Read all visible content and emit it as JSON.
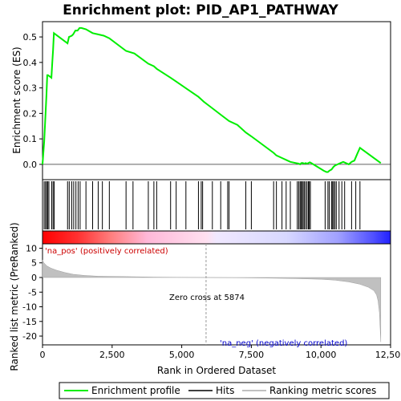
{
  "chart_data": {
    "type": "line",
    "title": "Enrichment plot: PID_AP1_PATHWAY",
    "top_panel": {
      "ylabel": "Enrichment score (ES)",
      "ylim": [
        -0.06,
        0.56
      ],
      "yticks": [
        "0.0",
        "0.1",
        "0.2",
        "0.3",
        "0.4",
        "0.5"
      ],
      "ytick_values": [
        0.0,
        0.1,
        0.2,
        0.3,
        0.4,
        0.5
      ],
      "series": [
        {
          "name": "Enrichment profile",
          "color": "#00ee00",
          "x": [
            0,
            60,
            100,
            140,
            170,
            200,
            320,
            350,
            380,
            410,
            900,
            950,
            1050,
            1100,
            1180,
            1260,
            1330,
            1400,
            1560,
            1800,
            2000,
            2200,
            2400,
            3000,
            3300,
            3800,
            4000,
            4100,
            4600,
            4800,
            5200,
            5600,
            5700,
            5800,
            6100,
            6400,
            6700,
            7000,
            7300,
            7500,
            8300,
            8400,
            8600,
            8800,
            8900,
            9100,
            9200,
            9250,
            9300,
            9350,
            9400,
            9450,
            9500,
            9550,
            9600,
            9650,
            10100,
            10200,
            10250,
            10300,
            10380,
            10450,
            10500,
            10600,
            10700,
            10800,
            11000,
            11100,
            11200,
            11300,
            11400,
            12150
          ],
          "y": [
            0.0,
            0.09,
            0.18,
            0.27,
            0.35,
            0.35,
            0.34,
            0.4,
            0.45,
            0.515,
            0.475,
            0.5,
            0.505,
            0.51,
            0.525,
            0.525,
            0.535,
            0.535,
            0.53,
            0.515,
            0.51,
            0.505,
            0.495,
            0.445,
            0.435,
            0.395,
            0.385,
            0.375,
            0.34,
            0.325,
            0.295,
            0.265,
            0.255,
            0.245,
            0.22,
            0.195,
            0.17,
            0.155,
            0.125,
            0.11,
            0.045,
            0.035,
            0.025,
            0.015,
            0.01,
            0.005,
            0.003,
            0.0,
            0.005,
            0.005,
            0.003,
            0.005,
            0.003,
            0.005,
            0.008,
            0.005,
            -0.025,
            -0.03,
            -0.03,
            -0.025,
            -0.02,
            -0.01,
            -0.005,
            0.0,
            0.005,
            0.01,
            0.0,
            0.01,
            0.015,
            0.04,
            0.065,
            0.005
          ]
        }
      ]
    },
    "hits": {
      "name": "Hits",
      "x": [
        60,
        110,
        150,
        190,
        230,
        330,
        380,
        420,
        900,
        960,
        1050,
        1120,
        1200,
        1280,
        1350,
        1560,
        1800,
        2000,
        2150,
        2400,
        3000,
        3250,
        3800,
        4000,
        4100,
        4600,
        4800,
        5150,
        5600,
        5700,
        5750,
        6100,
        6400,
        6650,
        6700,
        7300,
        7500,
        8300,
        8400,
        8600,
        8750,
        8900,
        9150,
        9200,
        9250,
        9280,
        9320,
        9360,
        9400,
        9450,
        9500,
        9550,
        9580,
        9620,
        10150,
        10250,
        10300,
        10380,
        10420,
        10450,
        10500,
        10550,
        10650,
        10750,
        10850,
        11100,
        11250,
        11400
      ]
    },
    "bottom_panel": {
      "xlabel": "Rank in Ordered Dataset",
      "ylabel": "Ranked list metric (PreRanked)",
      "xlim": [
        0,
        12500
      ],
      "ylim": [
        -23,
        11.5
      ],
      "xticks": [
        "0",
        "2,500",
        "5,000",
        "7,500",
        "10,000",
        "12,500"
      ],
      "xtick_values": [
        0,
        2500,
        5000,
        7500,
        10000,
        12500
      ],
      "yticks": [
        "10",
        "5",
        "0",
        "-5",
        "-10",
        "-15",
        "-20"
      ],
      "ytick_values": [
        10,
        5,
        0,
        -5,
        -10,
        -15,
        -20
      ],
      "metric_x": [
        0,
        50,
        150,
        300,
        500,
        800,
        1100,
        1500,
        2000,
        3000,
        4000,
        5000,
        5874,
        7000,
        8000,
        9000,
        10000,
        10500,
        11000,
        11400,
        11700,
        11900,
        12000,
        12050,
        12100,
        12150
      ],
      "metric_y": [
        6.0,
        5.0,
        4.0,
        3.2,
        2.5,
        1.7,
        1.1,
        0.7,
        0.45,
        0.3,
        0.15,
        0.05,
        0.0,
        -0.08,
        -0.2,
        -0.35,
        -0.6,
        -0.9,
        -1.5,
        -2.3,
        -3.3,
        -4.5,
        -6.0,
        -8.0,
        -12.0,
        -22.0
      ],
      "color": "#c0c0c0"
    },
    "annotations": {
      "pos_label": "'na_pos' (positively correlated)",
      "neg_label": "'na_neg' (negatively correlated)",
      "zero_cross": "Zero cross at 5874",
      "zero_cross_x": 5874
    },
    "legend": [
      "Enrichment profile",
      "Hits",
      "Ranking metric scores"
    ]
  }
}
